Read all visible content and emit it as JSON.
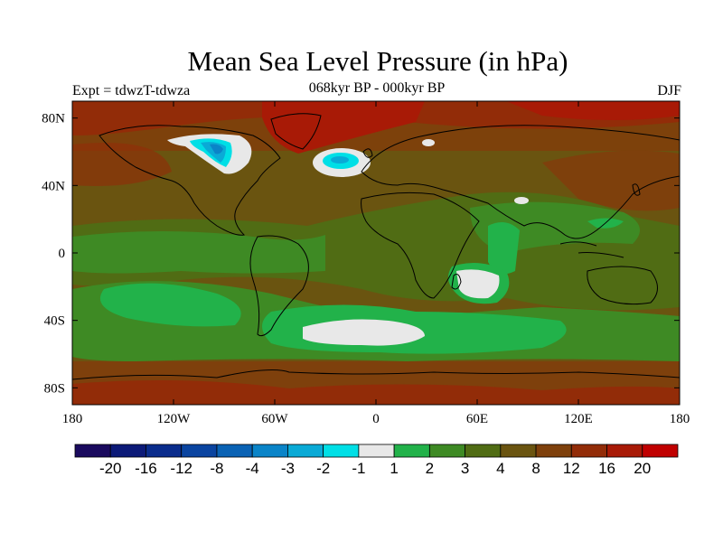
{
  "title": "Mean Sea Level Pressure (in hPa)",
  "subtitle": "068kyr BP - 000kyr BP",
  "left_label": "Expt = tdwzT-tdwza",
  "right_label": "DJF",
  "axes": {
    "x_ticks": [
      {
        "value": -180,
        "label": "180"
      },
      {
        "value": -120,
        "label": "120W"
      },
      {
        "value": -60,
        "label": "60W"
      },
      {
        "value": 0,
        "label": "0"
      },
      {
        "value": 60,
        "label": "60E"
      },
      {
        "value": 120,
        "label": "120E"
      },
      {
        "value": 180,
        "label": "180"
      }
    ],
    "y_ticks": [
      {
        "value": 80,
        "label": "80N"
      },
      {
        "value": 40,
        "label": "40N"
      },
      {
        "value": 0,
        "label": "0"
      },
      {
        "value": -40,
        "label": "40S"
      },
      {
        "value": -80,
        "label": "80S"
      }
    ],
    "lon_range": [
      -180,
      180
    ],
    "lat_range": [
      -90,
      90
    ]
  },
  "colorbar": {
    "colors": [
      "#1a0a5e",
      "#0c1a78",
      "#0a2c8c",
      "#0a44a0",
      "#0a62b4",
      "#0a84c8",
      "#0aaad6",
      "#00dfe6",
      "#e8e8e8",
      "#22b24a",
      "#3e8a24",
      "#506c14",
      "#6a5410",
      "#7e400c",
      "#922c08",
      "#a81a06",
      "#c00000"
    ],
    "labels": [
      "-20",
      "-16",
      "-12",
      "-8",
      "-4",
      "-3",
      "-2",
      "-1",
      "1",
      "2",
      "3",
      "4",
      "8",
      "12",
      "16",
      "20"
    ]
  },
  "map_colors": {
    "background": "#6a5410",
    "brown": "#7e400c",
    "darkred": "#922c08",
    "red": "#a81a06",
    "olive": "#506c14",
    "green": "#3e8a24",
    "lightgreen": "#22b24a",
    "white": "#e8e8e8",
    "cyan": "#00dfe6",
    "lightblue": "#0aaad6",
    "blue": "#0a84c8",
    "coast": "#000000"
  }
}
